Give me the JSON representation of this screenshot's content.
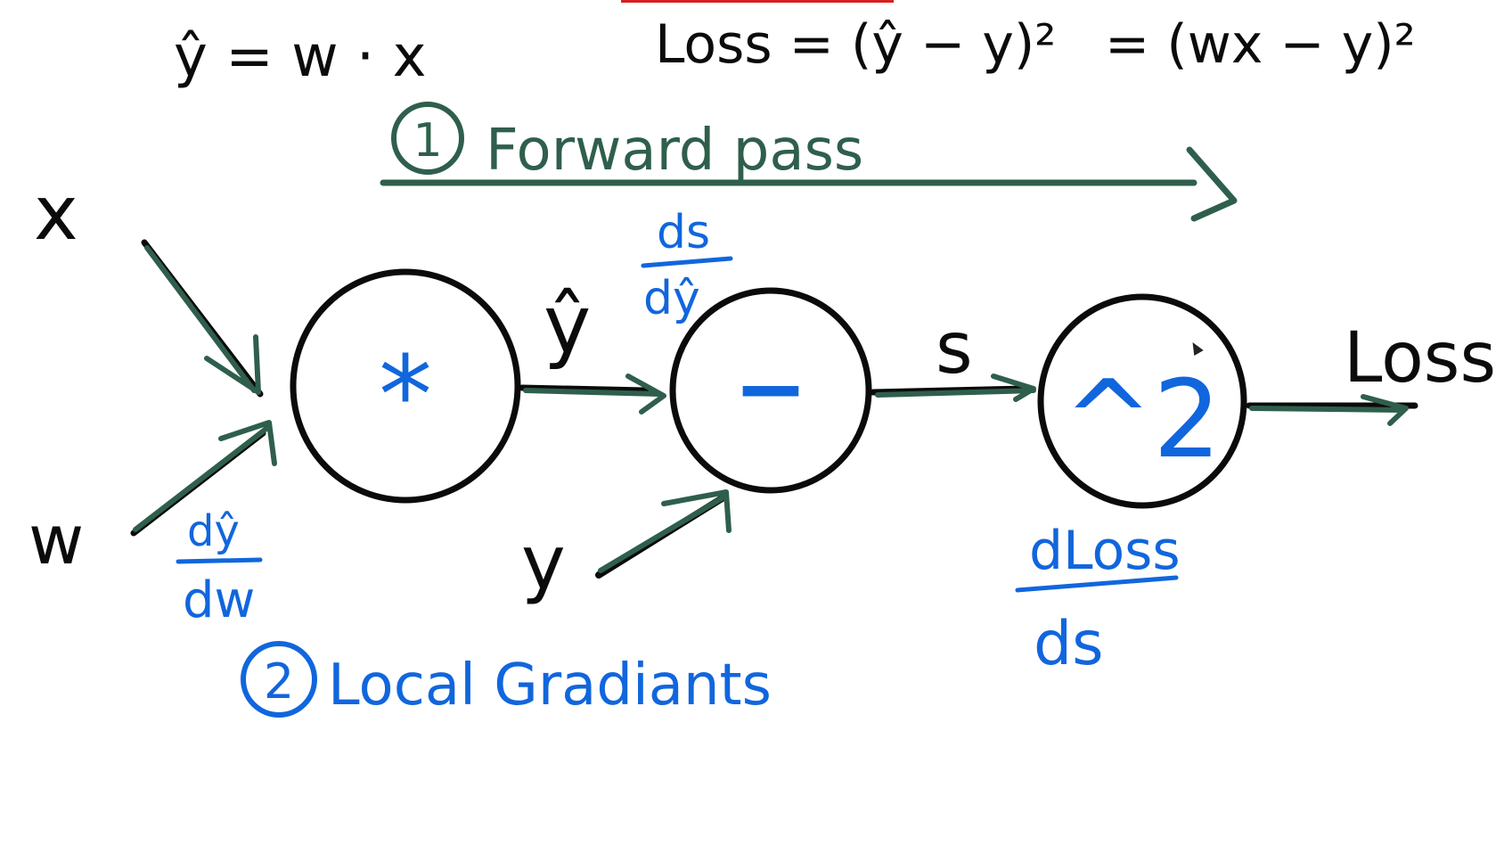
{
  "colors": {
    "ink": "#0b0b0b",
    "forward": "#2f5f4c",
    "gradients": "#1166dd"
  },
  "equations": {
    "prediction": "ŷ = w · x",
    "loss": "Loss = (ŷ − y)²",
    "loss_expanded": "= (wx − y)²"
  },
  "steps": {
    "forward": {
      "number": "1",
      "label": "Forward pass"
    },
    "local": {
      "number": "2",
      "label": "Local Gradiants"
    }
  },
  "inputs": {
    "x": "x",
    "w": "w",
    "y": "y"
  },
  "nodes": {
    "multiply": "*",
    "subtract": "−",
    "square": "^2"
  },
  "edges": {
    "yhat": "ŷ",
    "s": "s",
    "loss": "Loss"
  },
  "gradients": {
    "dyhat_dw": {
      "num": "dŷ",
      "den": "dw"
    },
    "ds_dyhat": {
      "num": "ds",
      "den": "dŷ"
    },
    "dloss_ds": {
      "num": "dLoss",
      "den": "ds"
    }
  }
}
